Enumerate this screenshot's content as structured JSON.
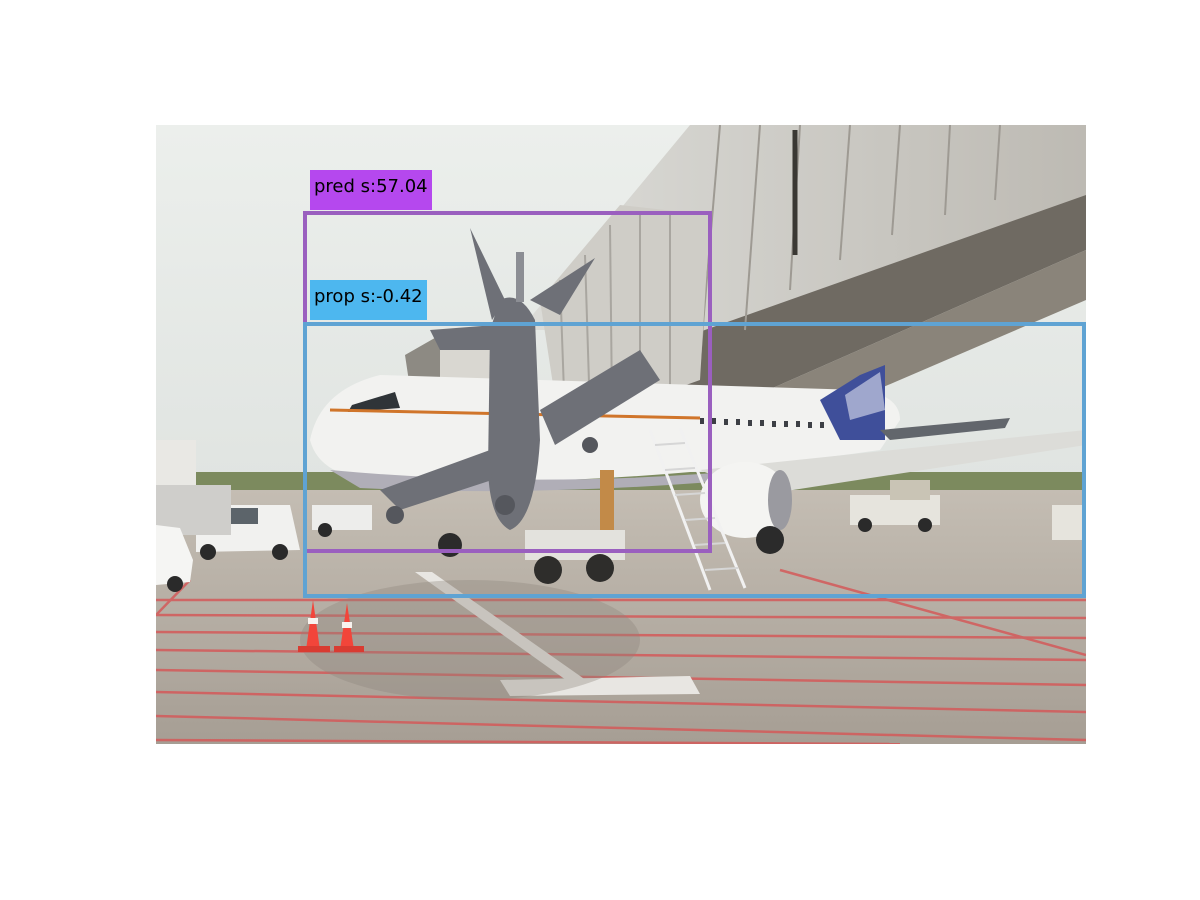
{
  "detections": {
    "pred": {
      "label": "pred s:57.04",
      "color": "#9a5fbf",
      "label_bg": "#b548ee"
    },
    "prop": {
      "label": "prop s:-0.42",
      "color": "#5fa3d3",
      "label_bg": "#4db7ef"
    }
  }
}
